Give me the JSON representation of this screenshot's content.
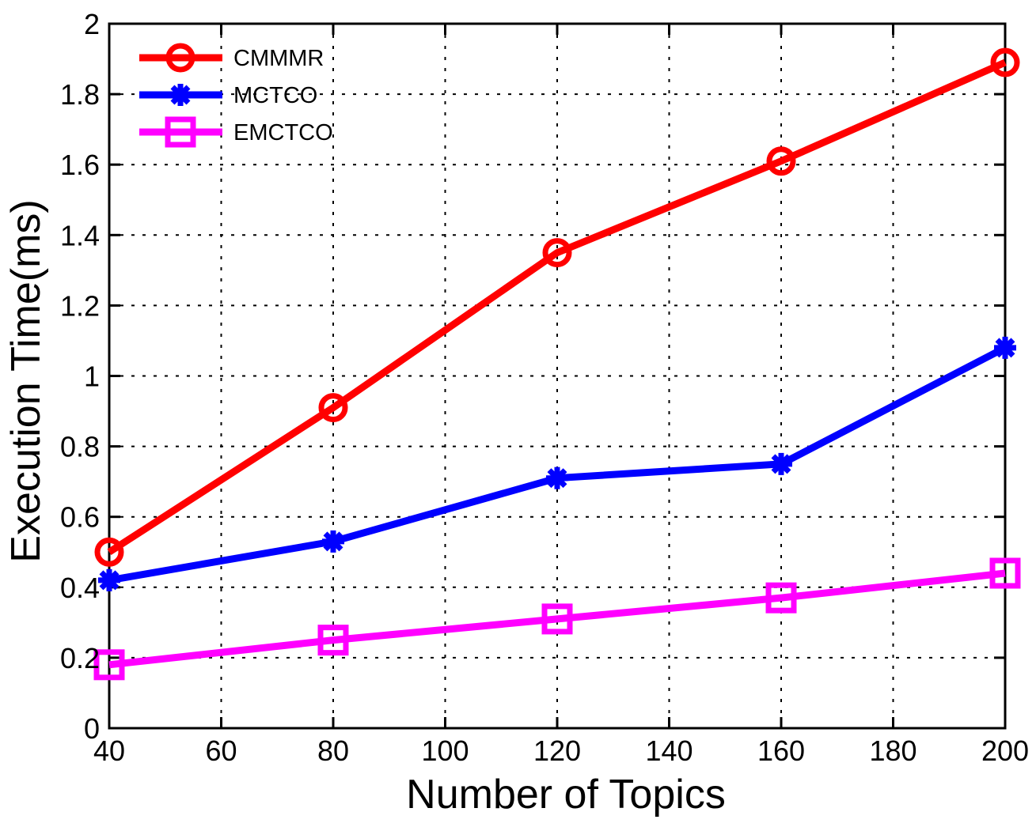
{
  "figure": {
    "background": "#ffffff",
    "axis_color": "#000000",
    "grid_style": "dotted"
  },
  "chart_data": {
    "type": "line",
    "title": "",
    "xlabel": "Number of Topics",
    "ylabel": "Execution Time(ms)",
    "xlim": [
      40,
      200
    ],
    "ylim": [
      0,
      2
    ],
    "x_ticks": [
      40,
      60,
      80,
      100,
      120,
      140,
      160,
      180,
      200
    ],
    "x_tick_labels": [
      "40",
      "60",
      "80",
      "100",
      "120",
      "140",
      "160",
      "180",
      "200"
    ],
    "y_ticks": [
      0,
      0.2,
      0.4,
      0.6,
      0.8,
      1,
      1.2,
      1.4,
      1.6,
      1.8,
      2
    ],
    "y_tick_labels": [
      "0",
      "0.2",
      "0.4",
      "0.6",
      "0.8",
      "1",
      "1.2",
      "1.4",
      "1.6",
      "1.8",
      "2"
    ],
    "grid": true,
    "legend_position": "top-left",
    "legend_box": false,
    "x": [
      40,
      80,
      120,
      160,
      200
    ],
    "series": [
      {
        "name": "CMMMR",
        "color": "#ff0000",
        "marker": "circle",
        "values": [
          0.5,
          0.91,
          1.35,
          1.61,
          1.89
        ]
      },
      {
        "name": "MCTCO",
        "color": "#0000ff",
        "marker": "asterisk",
        "values": [
          0.42,
          0.53,
          0.71,
          0.75,
          1.08
        ]
      },
      {
        "name": "EMCTCO",
        "color": "#ff00ff",
        "marker": "square",
        "values": [
          0.18,
          0.25,
          0.31,
          0.37,
          0.44
        ]
      }
    ]
  }
}
